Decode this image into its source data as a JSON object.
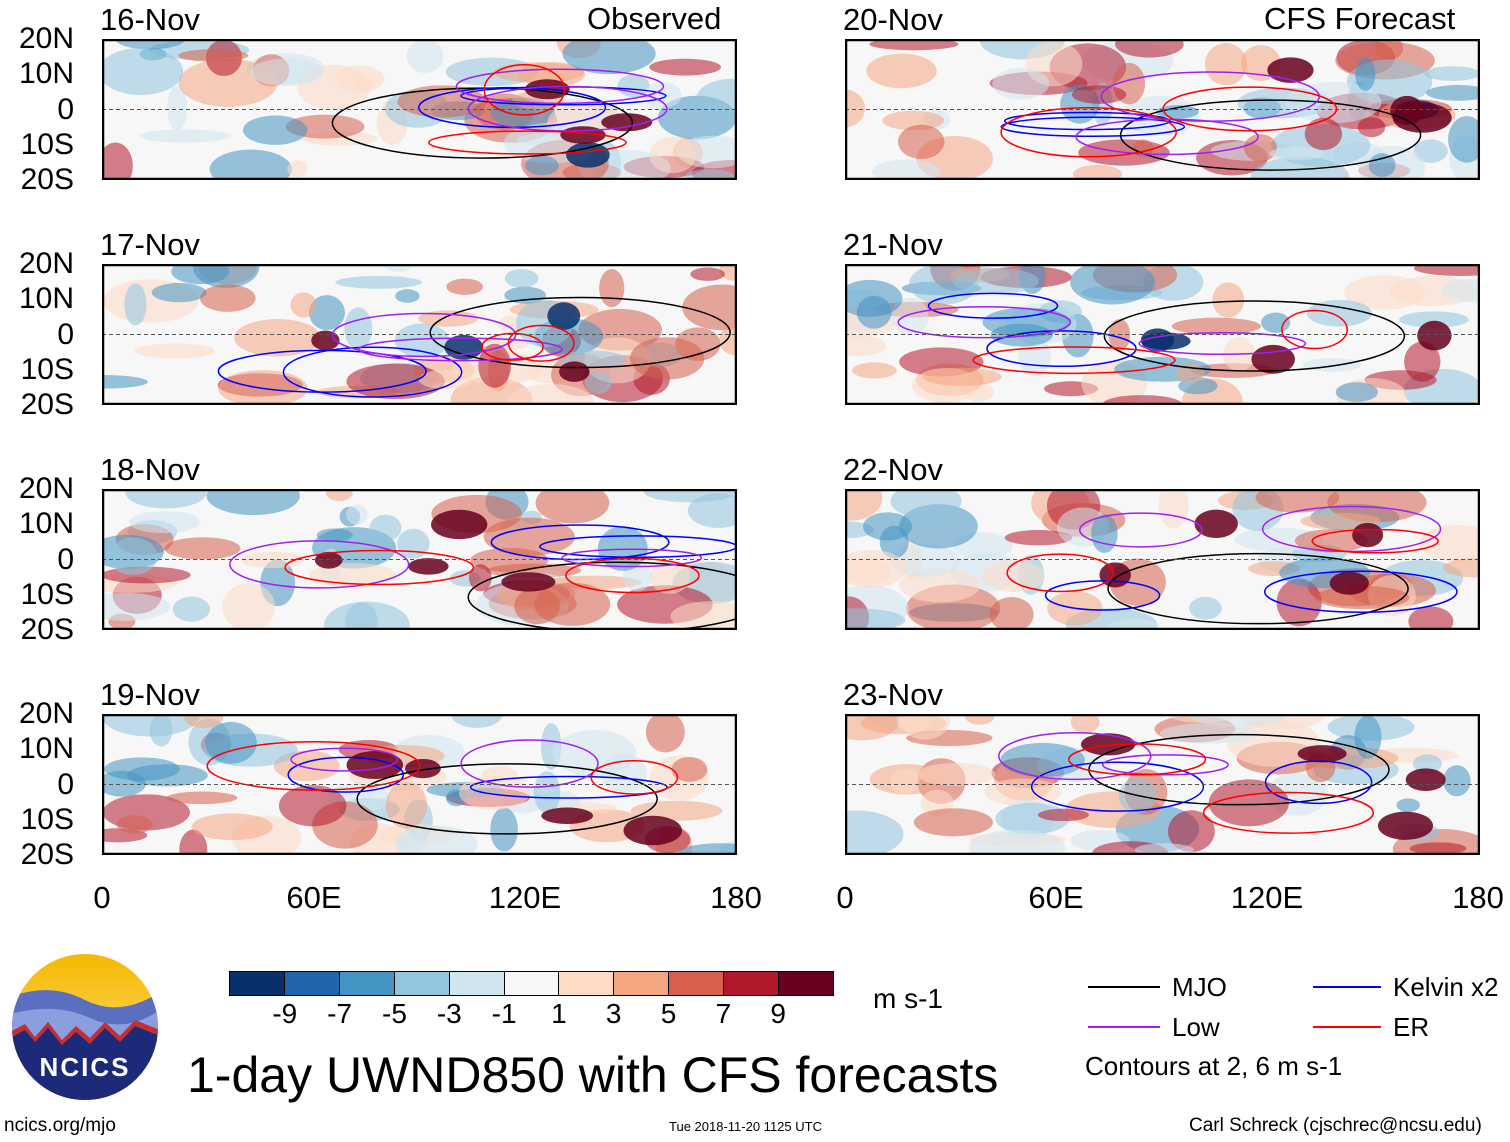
{
  "headers": {
    "left": "Observed",
    "right": "CFS Forecast"
  },
  "panels_left": [
    {
      "date": "16-Nov"
    },
    {
      "date": "17-Nov"
    },
    {
      "date": "18-Nov"
    },
    {
      "date": "19-Nov"
    }
  ],
  "panels_right": [
    {
      "date": "20-Nov"
    },
    {
      "date": "21-Nov"
    },
    {
      "date": "22-Nov"
    },
    {
      "date": "23-Nov"
    }
  ],
  "lat_labels": [
    "20N",
    "10N",
    "0",
    "10S",
    "20S"
  ],
  "lon_labels": [
    "0",
    "60E",
    "120E",
    "180"
  ],
  "colorbar": {
    "colors": [
      "#08306b",
      "#2166ac",
      "#4393c3",
      "#92c5de",
      "#d1e5f0",
      "#f7f7f7",
      "#fddbc7",
      "#f4a582",
      "#d6604d",
      "#b2182b",
      "#67001f"
    ],
    "labels": [
      "-9",
      "-7",
      "-5",
      "-3",
      "-1",
      "1",
      "3",
      "5",
      "7",
      "9"
    ],
    "units": "m s-1"
  },
  "legend": {
    "items": [
      {
        "label": "MJO",
        "color": "#000000"
      },
      {
        "label": "Kelvin x2",
        "color": "#0000ff"
      },
      {
        "label": "Low",
        "color": "#a020f0"
      },
      {
        "label": "ER",
        "color": "#ff0000"
      }
    ],
    "note": "Contours at 2, 6 m s-1"
  },
  "title": "1-day UWND850 with CFS forecasts",
  "logo_text": "NCICS",
  "footer": {
    "url": "ncics.org/mjo",
    "timestamp": "Tue 2018-11-20 1125 UTC",
    "credit": "Carl Schreck (cjschrec@ncsu.edu)"
  },
  "chart_data": {
    "type": "heatmap",
    "title": "1-day UWND850 with CFS forecasts",
    "variable": "850-hPa zonal wind anomaly",
    "units": "m s-1",
    "x_range": [
      0,
      180
    ],
    "x_ticks": [
      "0",
      "60E",
      "120E",
      "180"
    ],
    "y_range": [
      -20,
      20
    ],
    "y_ticks": [
      "20N",
      "10N",
      "0",
      "10S",
      "20S"
    ],
    "color_levels": [
      -9,
      -7,
      -5,
      -3,
      -1,
      1,
      3,
      5,
      7,
      9
    ],
    "observed_dates": [
      "16-Nov",
      "17-Nov",
      "18-Nov",
      "19-Nov"
    ],
    "forecast_dates": [
      "20-Nov",
      "21-Nov",
      "22-Nov",
      "23-Nov"
    ],
    "contours": [
      "MJO",
      "Kelvin x2",
      "Low",
      "ER"
    ],
    "contour_levels": [
      2,
      6
    ]
  }
}
